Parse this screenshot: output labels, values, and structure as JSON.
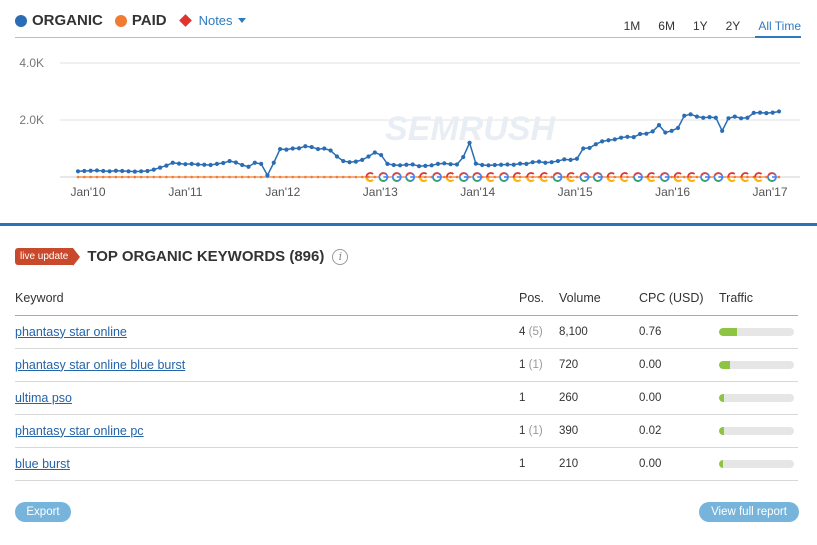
{
  "legend": {
    "organic": "ORGANIC",
    "paid": "PAID",
    "notes": "Notes",
    "organic_color": "#2a6db5",
    "paid_color": "#f07c33",
    "notes_color": "#e0342f"
  },
  "ranges": [
    "1M",
    "6M",
    "1Y",
    "2Y",
    "All Time"
  ],
  "active_range": "All Time",
  "watermark": "SEMRUSH",
  "chart_data": {
    "type": "line",
    "y_ticks": [
      "4.0K",
      "2.0K"
    ],
    "ylim": [
      0,
      4000
    ],
    "x_ticks": [
      "Jan'10",
      "Jan'11",
      "Jan'12",
      "Jan'13",
      "Jan'14",
      "Jan'15",
      "Jan'16",
      "Jan'17"
    ],
    "series": [
      {
        "name": "ORGANIC",
        "values": [
          200,
          210,
          220,
          230,
          210,
          200,
          220,
          210,
          200,
          190,
          200,
          210,
          260,
          330,
          400,
          500,
          470,
          450,
          460,
          440,
          430,
          420,
          460,
          490,
          560,
          510,
          420,
          360,
          500,
          460,
          60,
          500,
          980,
          960,
          1000,
          1010,
          1080,
          1050,
          980,
          1000,
          930,
          720,
          560,
          520,
          540,
          600,
          720,
          860,
          770,
          460,
          420,
          410,
          430,
          440,
          380,
          390,
          410,
          460,
          480,
          450,
          440,
          700,
          1200,
          470,
          420,
          410,
          420,
          430,
          440,
          430,
          470,
          460,
          520,
          540,
          500,
          520,
          560,
          620,
          600,
          640,
          1000,
          1020,
          1150,
          1250,
          1290,
          1320,
          1380,
          1410,
          1400,
          1510,
          1520,
          1600,
          1820,
          1560,
          1620,
          1720,
          2150,
          2200,
          2120,
          2080,
          2100,
          2080,
          1620,
          2060,
          2120,
          2060,
          2080,
          2250,
          2260,
          2240,
          2260,
          2300
        ]
      },
      {
        "name": "PAID",
        "values": [
          0,
          0,
          0,
          0,
          0,
          0,
          0,
          0,
          0,
          0,
          0,
          0,
          0,
          0,
          0,
          0,
          0,
          0,
          0,
          0,
          0,
          0,
          0,
          0,
          0,
          0,
          0,
          0,
          0,
          0,
          0,
          0,
          0,
          0,
          0,
          0,
          0,
          0,
          0,
          0,
          0,
          0,
          0,
          0,
          0,
          0,
          0,
          0,
          0,
          0,
          0,
          0,
          0,
          0,
          0,
          0,
          0,
          0,
          0,
          0,
          0,
          0,
          0,
          0,
          0,
          0,
          0,
          0,
          0,
          0,
          0,
          0,
          0,
          0,
          0,
          0,
          0,
          0,
          0,
          0,
          0,
          0,
          0,
          0,
          0,
          0,
          0,
          0,
          0,
          0,
          0,
          0,
          0,
          0,
          0,
          0,
          0,
          0,
          0,
          0,
          0,
          0,
          0,
          0,
          0,
          0,
          0,
          0,
          0,
          0,
          0,
          0
        ]
      }
    ],
    "notes_markers": [
      "C",
      "G",
      "G",
      "G",
      "C",
      "G",
      "C",
      "G",
      "G",
      "C",
      "G",
      "C",
      "C",
      "C",
      "G",
      "C",
      "G",
      "G",
      "C",
      "C",
      "G",
      "C",
      "G",
      "C",
      "C",
      "G",
      "G",
      "C",
      "C",
      "C",
      "G"
    ]
  },
  "keywords": {
    "live_label": "live update",
    "title": "TOP ORGANIC KEYWORDS (896)",
    "info": "i",
    "columns": {
      "keyword": "Keyword",
      "pos": "Pos.",
      "volume": "Volume",
      "cpc": "CPC (USD)",
      "traffic": "Traffic"
    },
    "rows": [
      {
        "keyword": "phantasy star online",
        "pos": "4",
        "prev": "(5)",
        "volume": "8,100",
        "cpc": "0.76",
        "traffic": 0.24
      },
      {
        "keyword": "phantasy star online blue burst",
        "pos": "1",
        "prev": "(1)",
        "volume": "720",
        "cpc": "0.00",
        "traffic": 0.14
      },
      {
        "keyword": "ultima pso",
        "pos": "1",
        "prev": "",
        "volume": "260",
        "cpc": "0.00",
        "traffic": 0.06
      },
      {
        "keyword": "phantasy star online pc",
        "pos": "1",
        "prev": "(1)",
        "volume": "390",
        "cpc": "0.02",
        "traffic": 0.06
      },
      {
        "keyword": "blue burst",
        "pos": "1",
        "prev": "",
        "volume": "210",
        "cpc": "0.00",
        "traffic": 0.05
      }
    ]
  },
  "buttons": {
    "export": "Export",
    "full_report": "View full report"
  }
}
